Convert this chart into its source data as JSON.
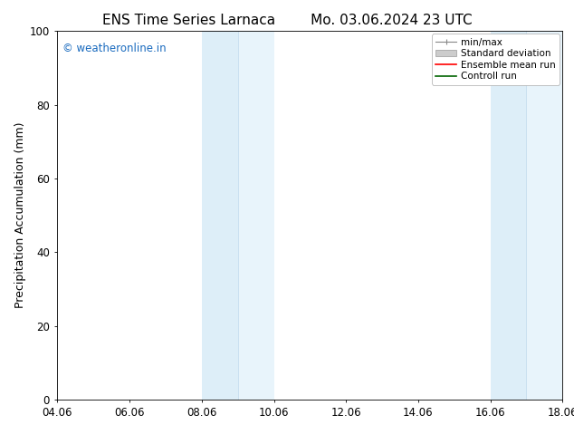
{
  "title_left": "ENS Time Series Larnaca",
  "title_right": "Mo. 03.06.2024 23 UTC",
  "ylabel": "Precipitation Accumulation (mm)",
  "ylim": [
    0,
    100
  ],
  "yticks": [
    0,
    20,
    40,
    60,
    80,
    100
  ],
  "xtick_labels": [
    "04.06",
    "06.06",
    "08.06",
    "10.06",
    "12.06",
    "14.06",
    "16.06",
    "18.06"
  ],
  "xtick_positions": [
    0,
    2,
    4,
    6,
    8,
    10,
    12,
    14
  ],
  "xlim": [
    0,
    14
  ],
  "shaded_bands": [
    {
      "xmin": 4.0,
      "xmid": 5.0,
      "xmax": 6.0
    },
    {
      "xmin": 12.0,
      "xmid": 13.0,
      "xmax": 14.5
    }
  ],
  "shaded_color": "#ddeef8",
  "shaded_color2": "#e8f4fb",
  "background_color": "#ffffff",
  "watermark_text": "© weatheronline.in",
  "watermark_color": "#1a6bbf",
  "title_fontsize": 11,
  "tick_fontsize": 8.5,
  "ylabel_fontsize": 9,
  "watermark_fontsize": 8.5
}
